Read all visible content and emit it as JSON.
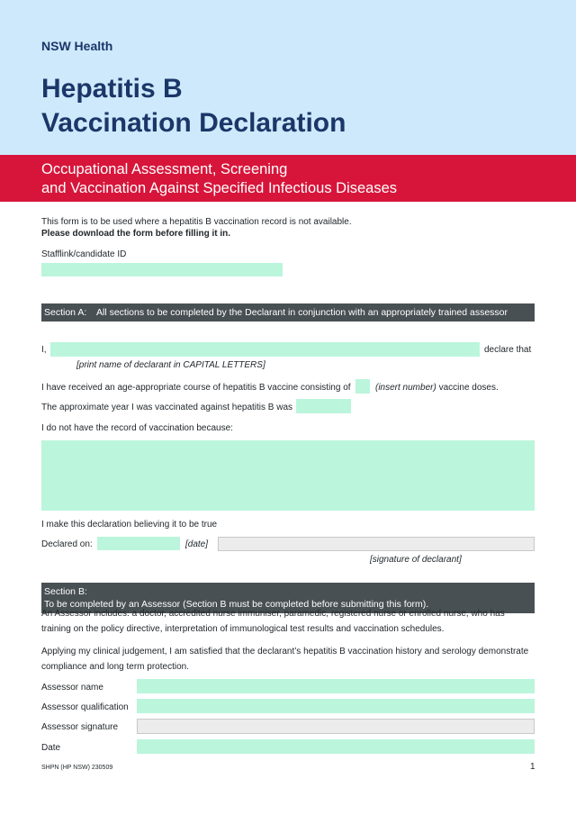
{
  "header": {
    "org": "NSW Health",
    "title_line1": "Hepatitis B",
    "title_line2": "Vaccination Declaration",
    "subtitle_line1": "Occupational Assessment, Screening",
    "subtitle_line2": "and Vaccination Against Specified Infectious Diseases"
  },
  "intro": {
    "line1": "This form is to be used where a hepatitis B vaccination record is not available.",
    "line2": "Please download the form before filling it in.",
    "id_label": "Stafflink/candidate ID"
  },
  "section_a": {
    "label": "Section A:",
    "text": "All sections to be completed by the Declarant in conjunction with an appropriately trained assessor",
    "i_prefix": "I,",
    "declare_that": "declare that",
    "name_hint": "[print name of declarant in CAPITAL LETTERS]",
    "course_text": "I have received an age-appropriate course of hepatitis B vaccine consisting of",
    "insert_number": "(insert number)",
    "vaccine_doses": "vaccine doses.",
    "year_text": "The approximate year I was vaccinated against hepatitis B was",
    "no_record": "I do not have the record of vaccination because:",
    "belief": "I make this declaration believing it to be true",
    "declared_on": "Declared on:",
    "date_hint": "[date]",
    "signature_hint": "[signature of declarant]"
  },
  "section_b": {
    "label": "Section B:",
    "text": "To be completed by an Assessor (Section B must be completed before submitting this form).",
    "assessor_info": "An Assessor includes: a doctor, accredited nurse immuniser, paramedic, registered nurse or enrolled nurse, who has training on the policy directive, interpretation of immunological test results and vaccination schedules.",
    "judgement": "Applying my clinical judgement, I am satisfied that the declarant’s hepatitis B vaccination history and serology demonstrate compliance and long term protection.",
    "fields": [
      "Assessor name",
      "Assessor qualification",
      "Assessor signature",
      "Date"
    ]
  },
  "footer": {
    "code": "SHPN (HP NSW) 230509",
    "page": "1"
  }
}
